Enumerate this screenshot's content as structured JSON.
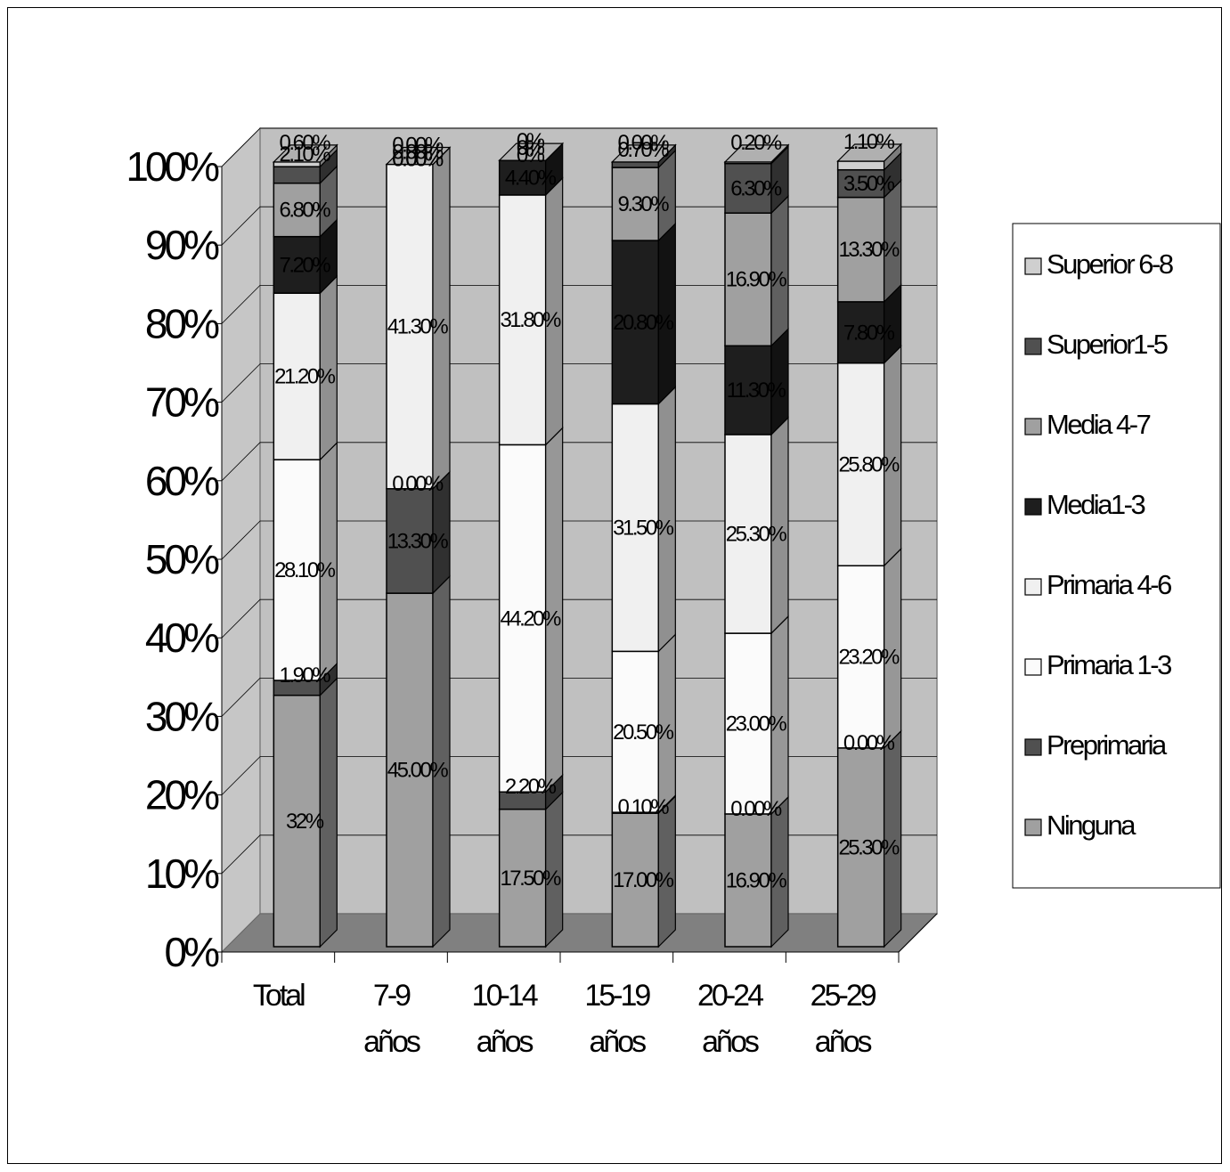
{
  "chart_data": {
    "type": "bar",
    "stacked": true,
    "three_d": true,
    "percent_scale": true,
    "title": "",
    "xlabel": "",
    "ylabel": "",
    "ylim": [
      0,
      100
    ],
    "y_ticks": [
      "0%",
      "10%",
      "20%",
      "30%",
      "40%",
      "50%",
      "60%",
      "70%",
      "80%",
      "90%",
      "100%"
    ],
    "categories": [
      [
        "Total"
      ],
      [
        "7-9",
        "años"
      ],
      [
        "10-14",
        "años"
      ],
      [
        "15-19",
        "años"
      ],
      [
        "20-24",
        "años"
      ],
      [
        "25-29",
        "años"
      ]
    ],
    "grid": true,
    "legend_position": "right",
    "series": [
      {
        "name": "Ninguna",
        "color": "#a0a0a0",
        "values": [
          32,
          45.0,
          17.5,
          17.0,
          16.9,
          25.3
        ],
        "labels": [
          "32%",
          "45.00%",
          "17.50%",
          "17.00%",
          "16.90%",
          "25.30%"
        ]
      },
      {
        "name": "Preprimaria",
        "color": "#505050",
        "values": [
          1.9,
          13.3,
          2.2,
          0.1,
          0.0,
          0.0
        ],
        "labels": [
          "1.90%",
          "13.30%",
          "2.20%",
          "0.10%",
          "0.00%",
          "0.00%"
        ]
      },
      {
        "name": "Primaria 1-3",
        "color": "#fbfbfb",
        "values": [
          28.1,
          0.0,
          44.2,
          20.5,
          23.0,
          23.2
        ],
        "labels": [
          "28.10%",
          "0.00%",
          "44.20%",
          "20.50%",
          "23.00%",
          "23.20%"
        ]
      },
      {
        "name": "Primaria 4-6",
        "color": "#f0f0f0",
        "values": [
          21.2,
          41.3,
          31.8,
          31.5,
          25.3,
          25.8
        ],
        "labels": [
          "21.20%",
          "41.30%",
          "31.80%",
          "31.50%",
          "25.30%",
          "25.80%"
        ]
      },
      {
        "name": "Media1-3",
        "color": "#1e1e1e",
        "values": [
          7.2,
          0.0,
          4.4,
          20.8,
          11.3,
          7.8
        ],
        "labels": [
          "7.20%",
          "0.00%",
          "4.40%",
          "20.80%",
          "11.30%",
          "7.80%"
        ]
      },
      {
        "name": "Media 4-7",
        "color": "#a0a0a0",
        "values": [
          6.8,
          0.0,
          0.0,
          9.3,
          16.9,
          13.3
        ],
        "labels": [
          "6.80%",
          "0.00%",
          "0%",
          "9.30%",
          "16.90%",
          "13.30%"
        ]
      },
      {
        "name": "Superior1-5",
        "color": "#505050",
        "values": [
          2.1,
          0.0,
          0.0,
          0.7,
          6.3,
          3.5
        ],
        "labels": [
          "2.10%",
          "0.00%",
          "0%",
          "0.70%",
          "6.30%",
          "3.50%"
        ]
      },
      {
        "name": "Superior 6-8",
        "color": "#cfcfcf",
        "values": [
          0.6,
          0.0,
          0.0,
          0.0,
          0.2,
          1.1
        ],
        "labels": [
          "0.60%",
          "0.00%",
          "0%",
          "0.00%",
          "0.20%",
          "1.10%"
        ]
      }
    ]
  }
}
